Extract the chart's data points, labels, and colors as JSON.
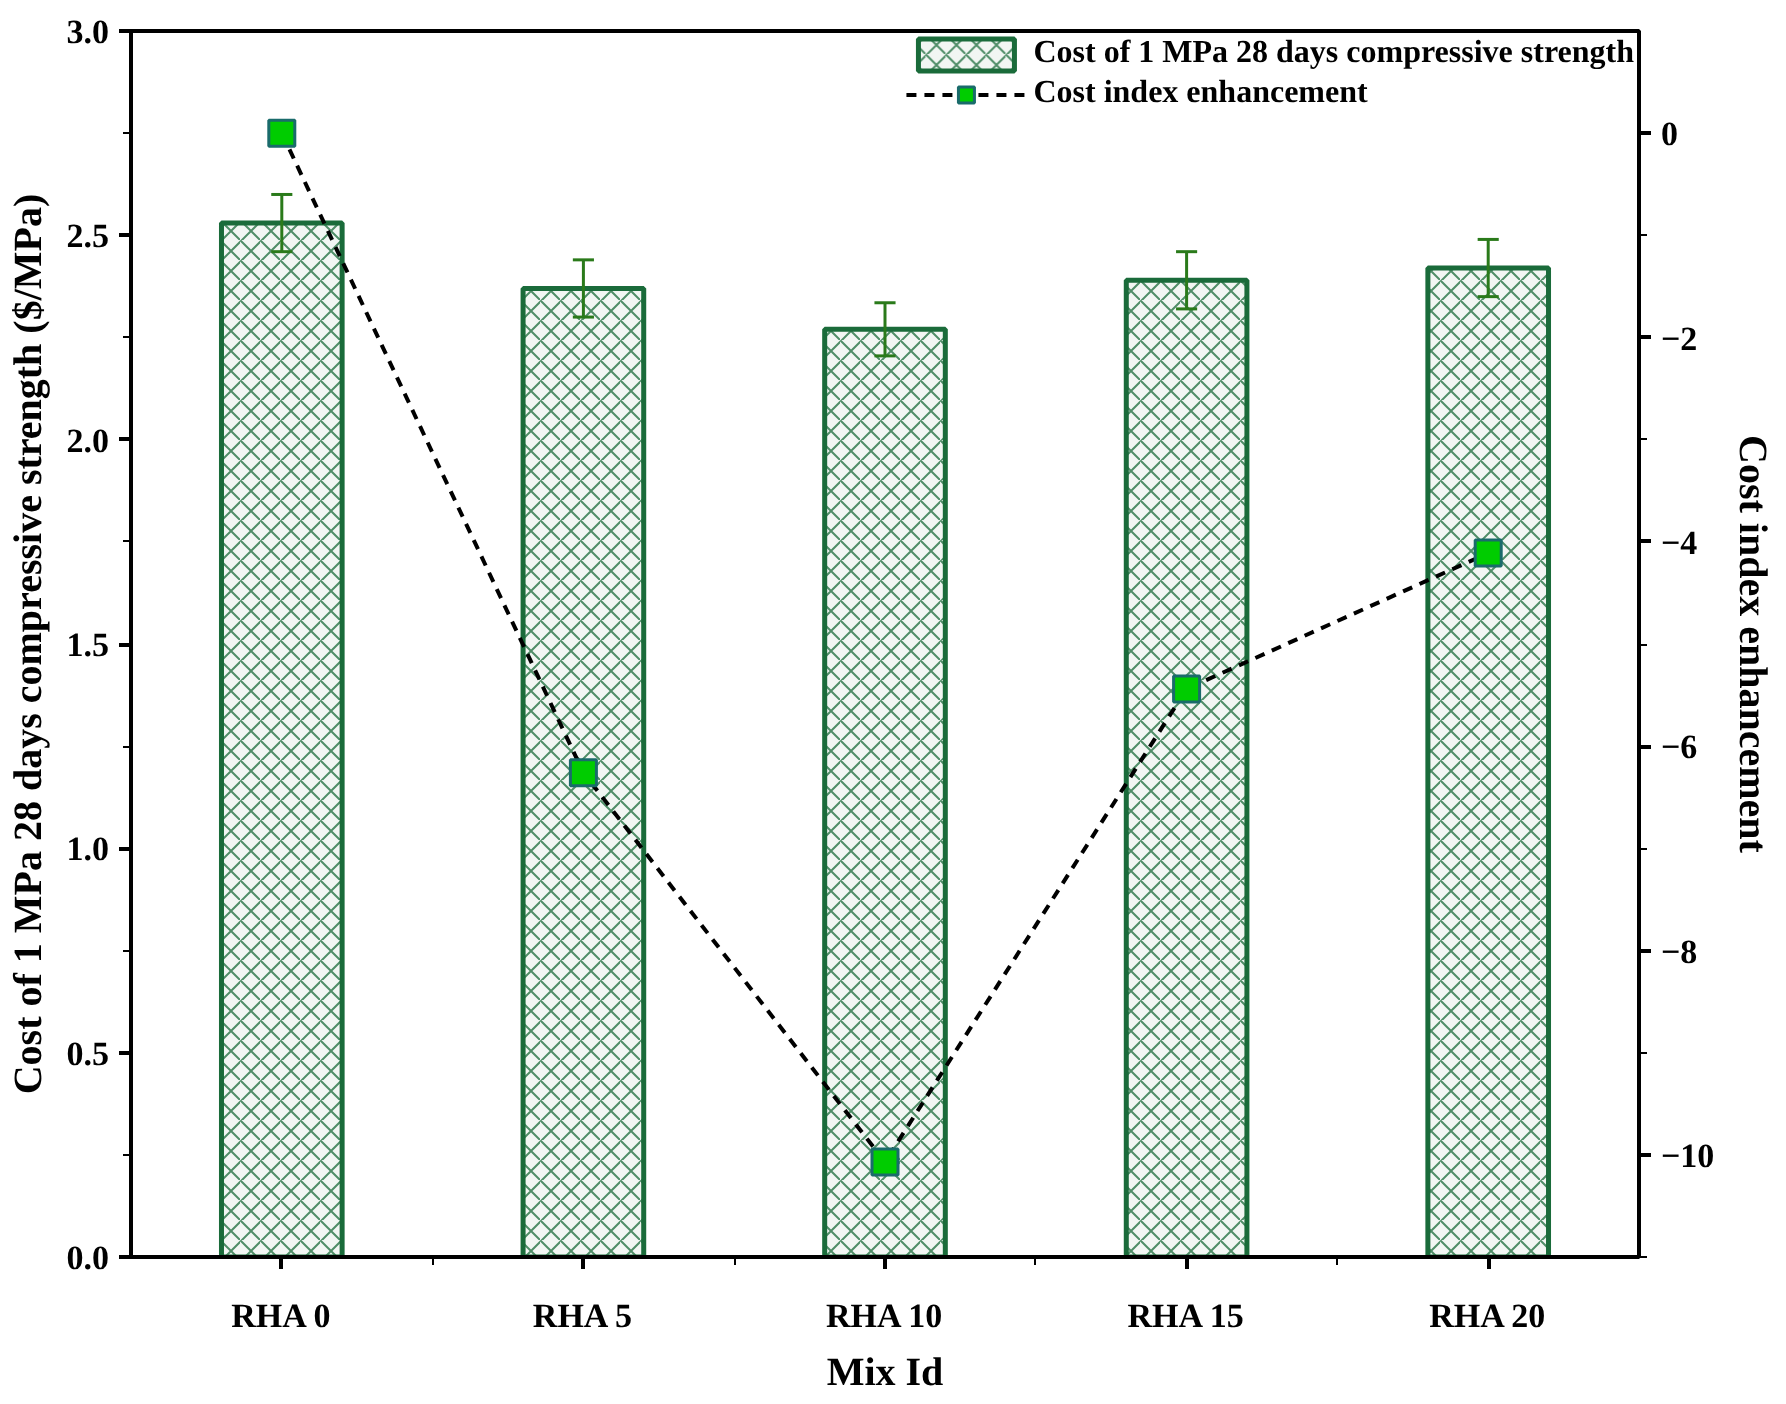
{
  "chart_data": {
    "type": "bar",
    "xlabel": "Mix Id",
    "ylabel": "Cost of 1 MPa 28 days compressive strength ($/MPa)",
    "y2label": "Cost index enhancement",
    "categories": [
      "RHA 0",
      "RHA 5",
      "RHA 10",
      "RHA 15",
      "RHA 20"
    ],
    "series": [
      {
        "name": "Cost of 1 MPa 28 days compressive strength",
        "color": "#1a6b3a",
        "values": [
          2.53,
          2.37,
          2.27,
          2.39,
          2.42
        ],
        "errors": [
          0.07,
          0.07,
          0.065,
          0.07,
          0.07
        ]
      },
      {
        "name": "Cost index enhancement",
        "type": "line",
        "axis": "y2",
        "color": "#000000",
        "marker": "square",
        "line_style": "dashed",
        "values": [
          0,
          -6.26,
          -10.07,
          -5.44,
          -4.11
        ]
      }
    ],
    "ylim": [
      0,
      3.0
    ],
    "yticks": [
      {
        "value": 0,
        "label": "0.0"
      },
      0.5,
      {
        "value": 1,
        "label": "1.0"
      },
      1.5,
      {
        "value": 2,
        "label": "2.0"
      },
      2.5,
      {
        "value": 3,
        "label": "3.0"
      }
    ],
    "y2lim": [
      -11,
      1
    ],
    "y2ticks": [
      -10,
      -8,
      -6,
      -4,
      -2,
      0
    ],
    "grid": false,
    "legend": "top right"
  }
}
